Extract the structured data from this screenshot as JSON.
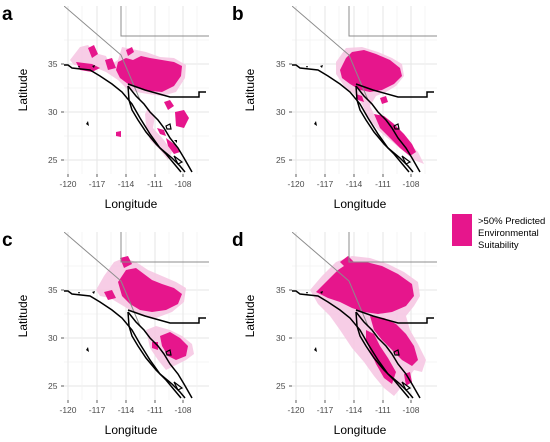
{
  "panels": [
    {
      "letter": "a"
    },
    {
      "letter": "b"
    },
    {
      "letter": "c"
    },
    {
      "letter": "d"
    }
  ],
  "axes": {
    "xlabel": "Longitude",
    "ylabel": "Latitude",
    "x_ticks": [
      "-120",
      "-117",
      "-114",
      "-111",
      "-108"
    ],
    "y_ticks": [
      "35",
      "30",
      "25"
    ]
  },
  "legend": {
    "lines": [
      ">50% Predicted",
      "Environmental",
      "Suitability"
    ],
    "color": "#e6168c"
  },
  "colors": {
    "suitability": "#e6168c",
    "suitability_light": "#f6c4e2",
    "border_thick": "#000000",
    "border_thin": "#8c8c8c",
    "grid_major": "#e6e6e6",
    "grid_minor": "#f3f3f3"
  }
}
